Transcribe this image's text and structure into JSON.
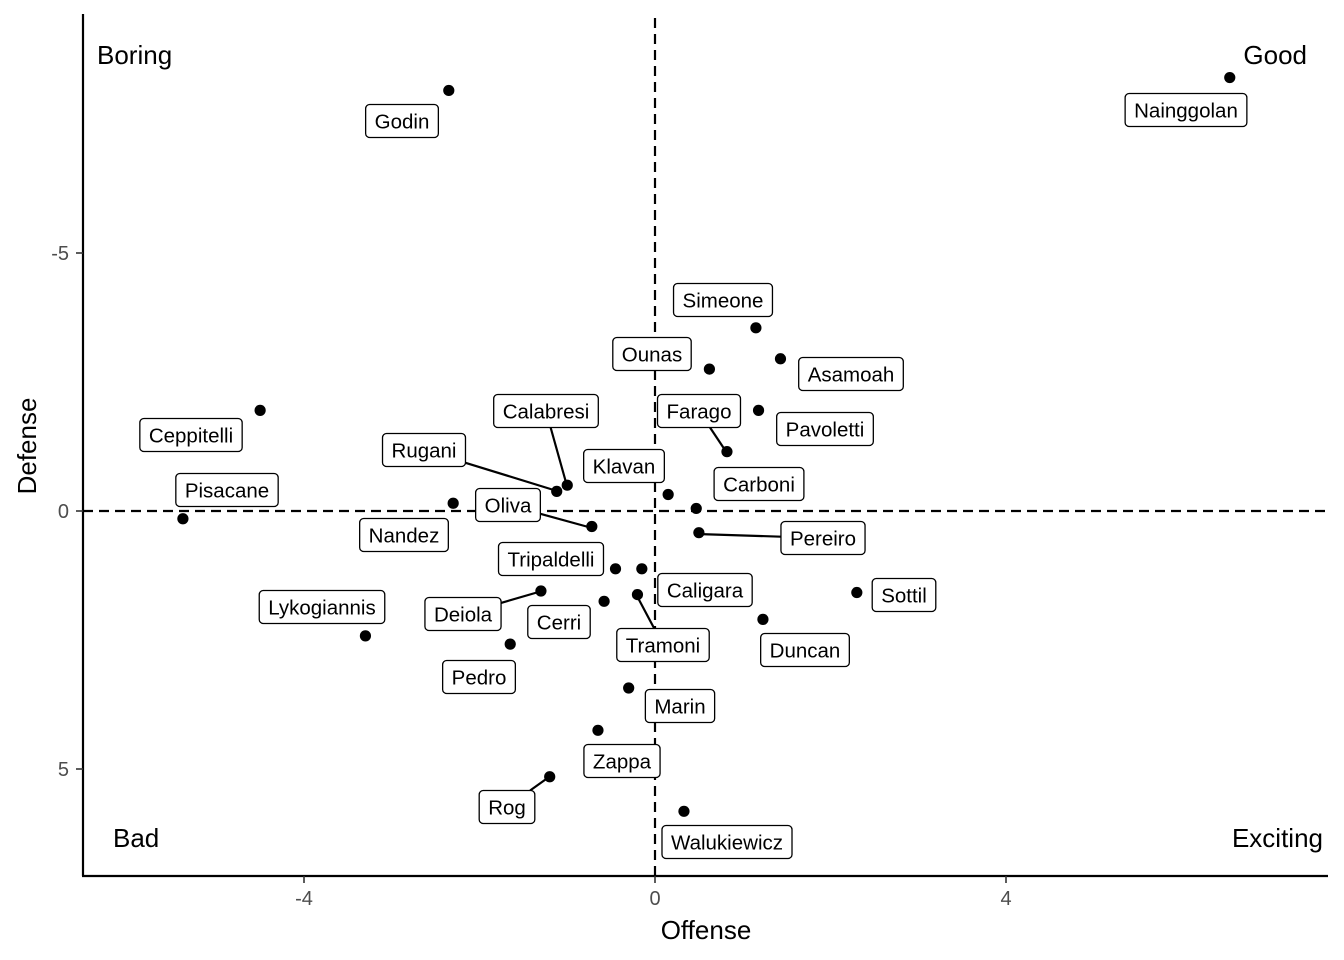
{
  "chart_data": {
    "type": "scatter",
    "xlabel": "Offense",
    "ylabel": "Defense",
    "xlim": [
      -6.5,
      7.6
    ],
    "ylim": [
      -10,
      7.1
    ],
    "y_reversed": true,
    "x_ticks": [
      -4,
      0,
      4
    ],
    "x_tick_labels": [
      "-4",
      "0",
      "4"
    ],
    "y_ticks": [
      -5,
      0,
      5
    ],
    "y_tick_labels": [
      "-5",
      "0",
      "5"
    ],
    "grid": false,
    "reference_lines": {
      "x": 0,
      "y": 0,
      "style": "dashed"
    },
    "quadrant_labels": {
      "top_left": "Boring",
      "top_right": "Good",
      "bottom_left": "Bad",
      "bottom_right": "Exciting"
    },
    "points": [
      {
        "name": "Godin",
        "x": -2.35,
        "y": -8.15
      },
      {
        "name": "Nainggolan",
        "x": 6.55,
        "y": -8.4
      },
      {
        "name": "Simeone",
        "x": 1.15,
        "y": -3.55
      },
      {
        "name": "Asamoah",
        "x": 1.43,
        "y": -2.95
      },
      {
        "name": "Ounas",
        "x": 0.62,
        "y": -2.75
      },
      {
        "name": "Farago",
        "x": 0.82,
        "y": -1.15
      },
      {
        "name": "Pavoletti",
        "x": 1.18,
        "y": -1.95
      },
      {
        "name": "Ceppitelli",
        "x": -4.5,
        "y": -1.95
      },
      {
        "name": "Calabresi",
        "x": -1.0,
        "y": -0.5
      },
      {
        "name": "Rugani",
        "x": -1.12,
        "y": -0.38
      },
      {
        "name": "Klavan",
        "x": 0.15,
        "y": -0.32
      },
      {
        "name": "Carboni",
        "x": 0.47,
        "y": -0.05
      },
      {
        "name": "Pisacane",
        "x": -5.38,
        "y": 0.15
      },
      {
        "name": "Nandez",
        "x": -2.3,
        "y": -0.15
      },
      {
        "name": "Oliva",
        "x": -0.72,
        "y": 0.3
      },
      {
        "name": "Pereiro",
        "x": 0.5,
        "y": 0.42
      },
      {
        "name": "Tripaldelli",
        "x": -0.45,
        "y": 1.12
      },
      {
        "name": "Caligara",
        "x": -0.15,
        "y": 1.12
      },
      {
        "name": "Tramoni",
        "x": -0.2,
        "y": 1.62
      },
      {
        "name": "Sottil",
        "x": 2.3,
        "y": 1.58
      },
      {
        "name": "Deiola",
        "x": -1.3,
        "y": 1.55
      },
      {
        "name": "Cerri",
        "x": -0.58,
        "y": 1.75
      },
      {
        "name": "Duncan",
        "x": 1.23,
        "y": 2.1
      },
      {
        "name": "Lykogiannis",
        "x": -3.3,
        "y": 2.42
      },
      {
        "name": "Pedro",
        "x": -1.65,
        "y": 2.58
      },
      {
        "name": "Marin",
        "x": -0.3,
        "y": 3.43
      },
      {
        "name": "Zappa",
        "x": -0.65,
        "y": 4.25
      },
      {
        "name": "Rog",
        "x": -1.2,
        "y": 5.15
      },
      {
        "name": "Walukiewicz",
        "x": 0.33,
        "y": 5.82
      }
    ]
  }
}
